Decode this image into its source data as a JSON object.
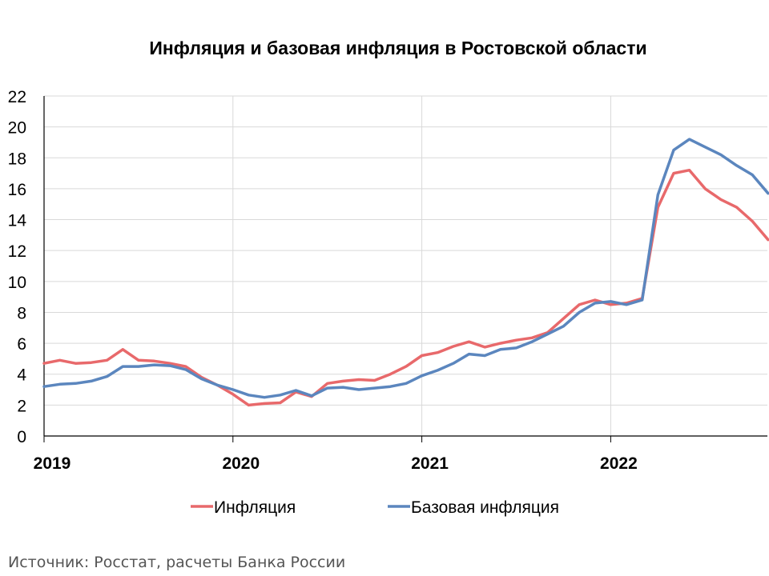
{
  "chart_data": {
    "type": "line",
    "title": "Инфляция и базовая инфляция в  Ростовской области",
    "xlabel": "",
    "ylabel": "",
    "ylim": [
      0,
      22
    ],
    "yticks": [
      0,
      2,
      4,
      6,
      8,
      10,
      12,
      14,
      16,
      18,
      20,
      22
    ],
    "xticks": [
      "2019",
      "2020",
      "2021",
      "2022"
    ],
    "x_start": "2019-01",
    "x_end": "2022-10",
    "grid": true,
    "legend_position": "bottom",
    "series": [
      {
        "name": "Инфляция",
        "color": "#e8696b",
        "values": [
          4.7,
          4.9,
          4.7,
          4.75,
          4.9,
          5.6,
          4.9,
          4.85,
          4.7,
          4.5,
          3.8,
          3.3,
          2.7,
          2.0,
          2.1,
          2.15,
          2.85,
          2.55,
          3.4,
          3.55,
          3.65,
          3.6,
          4.0,
          4.5,
          5.2,
          5.4,
          5.8,
          6.1,
          5.75,
          6.0,
          6.2,
          6.35,
          6.7,
          7.6,
          8.5,
          8.8,
          8.5,
          8.6,
          8.9,
          14.8,
          17.0,
          17.2,
          16.0,
          15.3,
          14.8,
          13.9,
          12.7
        ]
      },
      {
        "name": "Базовая инфляция",
        "color": "#5b86be",
        "values": [
          3.2,
          3.35,
          3.4,
          3.55,
          3.85,
          4.5,
          4.5,
          4.6,
          4.55,
          4.3,
          3.7,
          3.3,
          3.0,
          2.65,
          2.5,
          2.65,
          2.95,
          2.6,
          3.1,
          3.15,
          3.0,
          3.1,
          3.2,
          3.4,
          3.9,
          4.25,
          4.7,
          5.3,
          5.2,
          5.6,
          5.7,
          6.1,
          6.6,
          7.1,
          8.0,
          8.6,
          8.7,
          8.5,
          8.8,
          15.6,
          18.5,
          19.2,
          18.7,
          18.2,
          17.5,
          16.9,
          15.7
        ]
      }
    ]
  },
  "source": "Источник: Росстат, расчеты Банка России"
}
